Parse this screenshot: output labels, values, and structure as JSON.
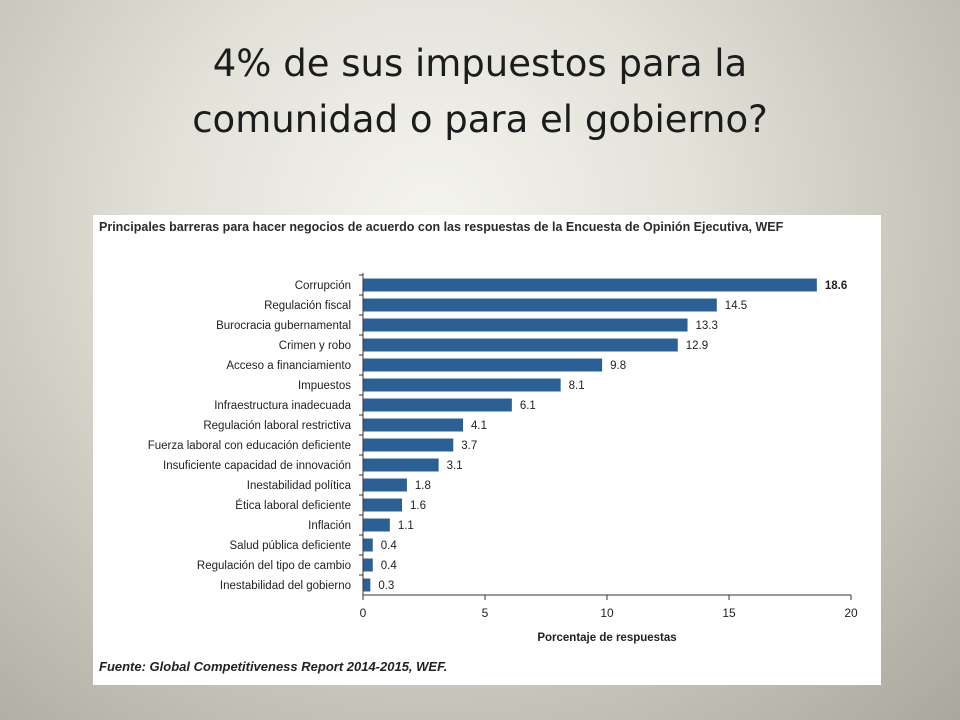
{
  "slide": {
    "title_line1": "4% de sus impuestos para la",
    "title_line2": "comunidad o para el gobierno?"
  },
  "colors": {
    "bar": "#2c5f94",
    "axis": "#333333"
  },
  "chart_data": {
    "type": "bar",
    "orientation": "horizontal",
    "title": "Principales barreras para hacer negocios de acuerdo con las respuestas de la Encuesta de Opinión Ejecutiva, WEF",
    "categories": [
      "Corrupción",
      "Regulación fiscal",
      "Burocracia gubernamental",
      "Crimen y robo",
      "Acceso a financiamiento",
      "Impuestos",
      "Infraestructura inadecuada",
      "Regulación laboral restrictiva",
      "Fuerza laboral con educación deficiente",
      "Insuficiente capacidad de innovación",
      "Inestabilidad política",
      "Ética laboral deficiente",
      "Inflación",
      "Salud pública deficiente",
      "Regulación del tipo de cambio",
      "Inestabilidad del gobierno"
    ],
    "values": [
      18.6,
      14.5,
      13.3,
      12.9,
      9.8,
      8.1,
      6.1,
      4.1,
      3.7,
      3.1,
      1.8,
      1.6,
      1.1,
      0.4,
      0.4,
      0.3
    ],
    "value_labels": [
      "18.6",
      "14.5",
      "13.3",
      "12.9",
      "9.8",
      "8.1",
      "6.1",
      "4.1",
      "3.7",
      "3.1",
      "1.8",
      "1.6",
      "1.1",
      "0.4",
      "0.4",
      "0.3"
    ],
    "xlabel": "Porcentaje de respuestas",
    "ylabel": "",
    "xlim": [
      0,
      20
    ],
    "xticks": [
      0,
      5,
      10,
      15,
      20
    ],
    "grid": false,
    "source": "Fuente: Global Competitiveness Report 2014-2015, WEF."
  }
}
